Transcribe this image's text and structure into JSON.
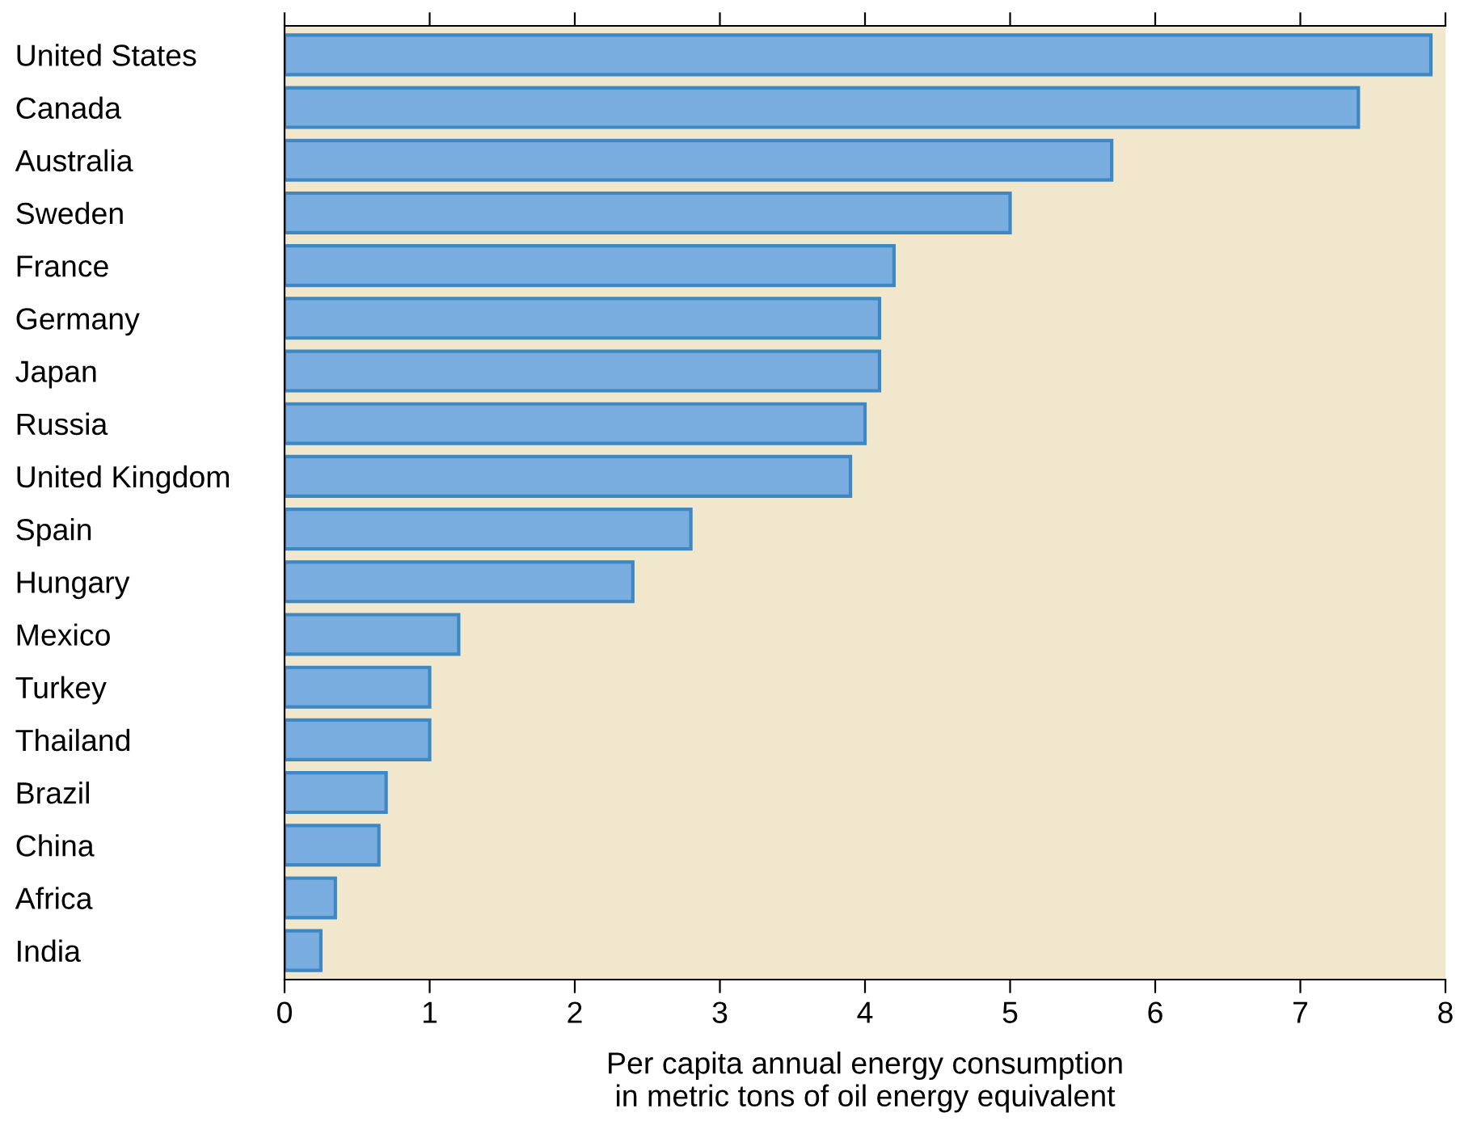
{
  "chart_data": {
    "type": "bar",
    "orientation": "horizontal",
    "categories": [
      "United States",
      "Canada",
      "Australia",
      "Sweden",
      "France",
      "Germany",
      "Japan",
      "Russia",
      "United Kingdom",
      "Spain",
      "Hungary",
      "Mexico",
      "Turkey",
      "Thailand",
      "Brazil",
      "China",
      "Africa",
      "India"
    ],
    "values": [
      7.9,
      7.4,
      5.7,
      5.0,
      4.2,
      4.1,
      4.1,
      4.0,
      3.9,
      2.8,
      2.4,
      1.2,
      1.0,
      1.0,
      0.7,
      0.65,
      0.35,
      0.25
    ],
    "color": "#7aaddf",
    "xlim": [
      0,
      8
    ],
    "xticks": [
      0,
      1,
      2,
      3,
      4,
      5,
      6,
      7,
      8
    ],
    "xlabel": "Per capita annual energy consumption\nin metric tons of oil energy equivalent",
    "grid": false,
    "legend": false
  }
}
